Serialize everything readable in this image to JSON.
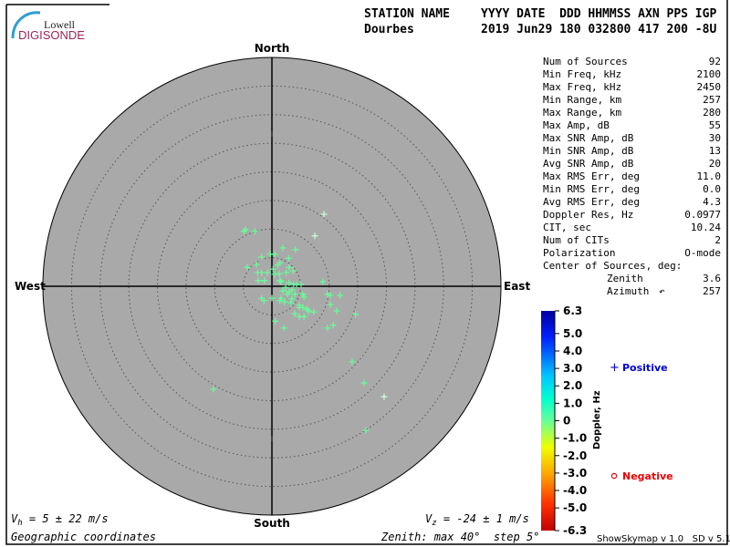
{
  "logo": {
    "line1": "Lowell",
    "line2": "DIGISONDE"
  },
  "header": {
    "labels": [
      "STATION NAME",
      "YYYY DATE  DDD HHMMSS AXN PPS IGP"
    ],
    "values": [
      "Dourbes",
      "2019 Jun29 180 032800 417 200 -8U"
    ]
  },
  "directions": {
    "north": "North",
    "south": "South",
    "east": "East",
    "west": "West"
  },
  "stats": [
    {
      "label": "Num of Sources",
      "value": "92"
    },
    {
      "label": "Min Freq, kHz",
      "value": "2100"
    },
    {
      "label": "Max Freq, kHz",
      "value": "2450"
    },
    {
      "label": "Min Range, km",
      "value": "257"
    },
    {
      "label": "Max Range, km",
      "value": "280"
    },
    {
      "label": "Max Amp, dB",
      "value": "55"
    },
    {
      "label": "Max SNR Amp, dB",
      "value": "30"
    },
    {
      "label": "Min SNR Amp, dB",
      "value": "13"
    },
    {
      "label": "Avg SNR Amp, dB",
      "value": "20"
    },
    {
      "label": "Max RMS Err, deg",
      "value": "11.0"
    },
    {
      "label": "Min RMS Err, deg",
      "value": "0.0"
    },
    {
      "label": "Avg RMS Err, deg",
      "value": "4.3"
    },
    {
      "label": "Doppler Res, Hz",
      "value": "0.0977"
    },
    {
      "label": "CIT, sec",
      "value": "10.24"
    },
    {
      "label": "Num of CITs",
      "value": "2"
    },
    {
      "label": "Polarization",
      "value": "O-mode"
    }
  ],
  "center": {
    "title": "Center of Sources, deg:",
    "zenith_label": "Zenith",
    "zenith": "3.6",
    "azimuth_label": "Azimuth",
    "azimuth": "257"
  },
  "colorbar": {
    "title": "Doppler, Hz",
    "ticks": [
      "6.3",
      "5.0",
      "4.0",
      "3.0",
      "2.0",
      "1.0",
      "0",
      "-1.0",
      "-2.0",
      "-3.0",
      "-4.0",
      "-5.0",
      "-6.3"
    ],
    "range": [
      -6.3,
      6.3
    ]
  },
  "legend": {
    "positive": "Positive",
    "negative": "Negative",
    "positive_color": "#0000dd",
    "negative_color": "#ee0000"
  },
  "footer": {
    "vh": "= 5 ± 22 m/s",
    "vz": "= -24 ± 1 m/s",
    "coords": "Geographic coordinates",
    "zenith": "Zenith: max 40°  step 5°",
    "version": "ShowSkymap v 1.0   SD v 5.1"
  },
  "colors": {
    "disk": "#a9a9a9",
    "source": "#66ff99",
    "source_light": "#ccffdd"
  },
  "chart_data": {
    "type": "scatter",
    "projection": "polar-zenith",
    "zenith_max_deg": 40,
    "zenith_step_deg": 5,
    "units": "deg east / deg north offset",
    "points": [
      [
        9.1,
        12.6,
        "light"
      ],
      [
        -4.6,
        9.9
      ],
      [
        -4.9,
        9.6
      ],
      [
        -3.0,
        9.6
      ],
      [
        7.5,
        8.8,
        "light"
      ],
      [
        1.9,
        6.7
      ],
      [
        4.1,
        6.4
      ],
      [
        -1.8,
        5.1
      ],
      [
        -0.3,
        5.6
      ],
      [
        0.5,
        5.6
      ],
      [
        2.9,
        4.9
      ],
      [
        -2.7,
        3.8
      ],
      [
        -4.3,
        3.3
      ],
      [
        1.0,
        3.7
      ],
      [
        1.4,
        4.1
      ],
      [
        3.0,
        3.3
      ],
      [
        0.2,
        3.0
      ],
      [
        -2.5,
        2.4
      ],
      [
        -1.8,
        2.4
      ],
      [
        -0.8,
        2.4
      ],
      [
        0.5,
        2.1
      ],
      [
        1.3,
        2.2
      ],
      [
        2.5,
        2.4
      ],
      [
        3.7,
        2.7
      ],
      [
        -2.4,
        1.0
      ],
      [
        -1.3,
        1.0
      ],
      [
        1.4,
        1.0
      ],
      [
        1.6,
        0.8
      ],
      [
        3.0,
        0.6
      ],
      [
        3.8,
        0.3
      ],
      [
        4.3,
        0.3
      ],
      [
        5.1,
        0.3
      ],
      [
        8.9,
        0.8
      ],
      [
        2.4,
        -0.2
      ],
      [
        1.9,
        -0.8
      ],
      [
        3.0,
        -1.0
      ],
      [
        3.5,
        -0.6
      ],
      [
        4.0,
        -1.4
      ],
      [
        5.4,
        -1.4
      ],
      [
        5.6,
        -1.9
      ],
      [
        9.7,
        -1.4
      ],
      [
        10.2,
        -1.6
      ],
      [
        11.9,
        -1.6
      ],
      [
        -1.8,
        -2.1
      ],
      [
        -1.4,
        -2.5
      ],
      [
        0,
        -2.1
      ],
      [
        1.6,
        -2.1
      ],
      [
        2.2,
        -2.7
      ],
      [
        2.7,
        -1.4
      ],
      [
        1.4,
        -2.5
      ],
      [
        3.5,
        -2.2
      ],
      [
        3.3,
        -2.9
      ],
      [
        4.8,
        -3.3
      ],
      [
        4.8,
        -3.7
      ],
      [
        5.4,
        -3.7
      ],
      [
        6.1,
        -4.0
      ],
      [
        6.4,
        -4.3
      ],
      [
        7.3,
        -4.5
      ],
      [
        10.2,
        -3.2
      ],
      [
        4.0,
        -4.8
      ],
      [
        4.8,
        -5.3
      ],
      [
        5.6,
        -5.3
      ],
      [
        11.3,
        -4.3
      ],
      [
        14.6,
        -4.9
      ],
      [
        0.6,
        -6.1
      ],
      [
        2.1,
        -7.3
      ],
      [
        9.7,
        -7.3
      ],
      [
        10.7,
        -6.8
      ],
      [
        14.0,
        -13.2
      ],
      [
        16.1,
        -16.9
      ],
      [
        19.6,
        -19.3,
        "light"
      ],
      [
        -10.2,
        -18.0
      ],
      [
        16.4,
        -25.2
      ]
    ]
  }
}
